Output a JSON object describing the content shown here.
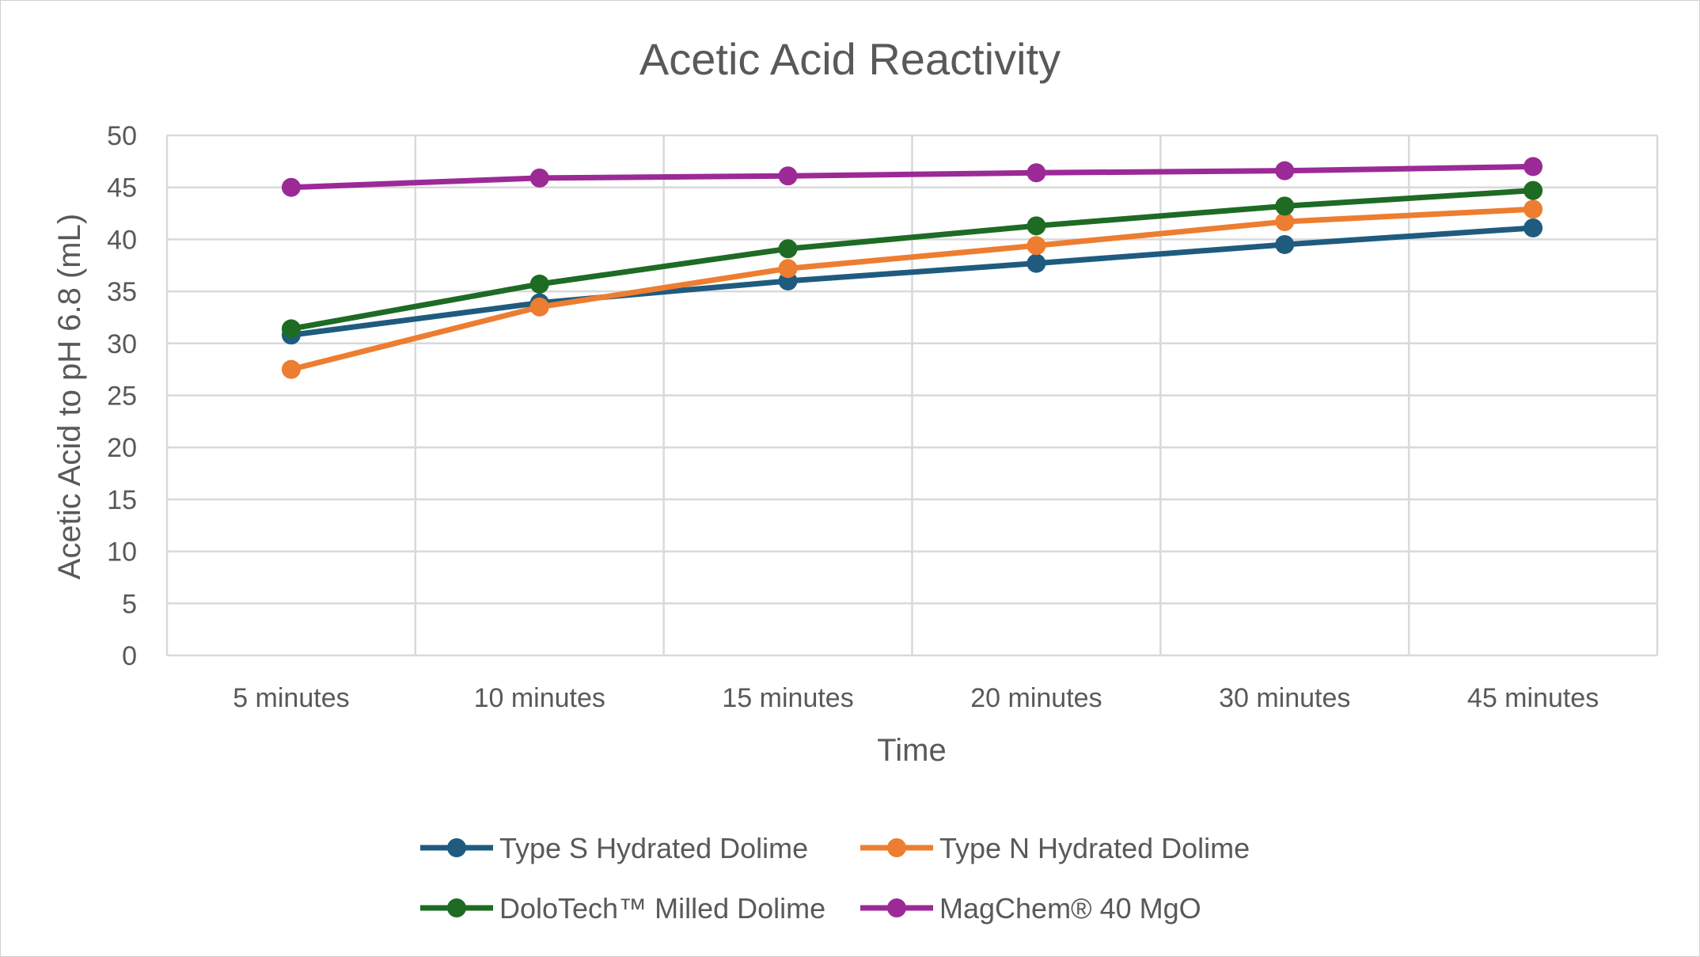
{
  "chart_data": {
    "type": "line",
    "title": "Acetic Acid Reactivity",
    "xlabel": "Time",
    "ylabel": "Acetic Acid to pH 6.8 (mL)",
    "categories": [
      "5 minutes",
      "10 minutes",
      "15 minutes",
      "20 minutes",
      "30 minutes",
      "45 minutes"
    ],
    "ylim": [
      0,
      50
    ],
    "yticks": [
      0,
      5,
      10,
      15,
      20,
      25,
      30,
      35,
      40,
      45,
      50
    ],
    "grid": true,
    "legend": "bottom",
    "series": [
      {
        "name": "Type S Hydrated Dolime",
        "color": "#1f5b7f",
        "values": [
          30.8,
          33.9,
          36.0,
          37.7,
          39.5,
          41.1
        ]
      },
      {
        "name": "Type N Hydrated Dolime",
        "color": "#ed7d31",
        "values": [
          27.5,
          33.5,
          37.2,
          39.4,
          41.7,
          42.9
        ]
      },
      {
        "name": "DoloTech™ Milled Dolime",
        "color": "#1e6b24",
        "values": [
          31.4,
          35.7,
          39.1,
          41.3,
          43.2,
          44.7
        ]
      },
      {
        "name": "MagChem® 40 MgO",
        "color": "#9b2a96",
        "values": [
          45.0,
          45.9,
          46.1,
          46.4,
          46.6,
          47.0
        ]
      }
    ]
  }
}
